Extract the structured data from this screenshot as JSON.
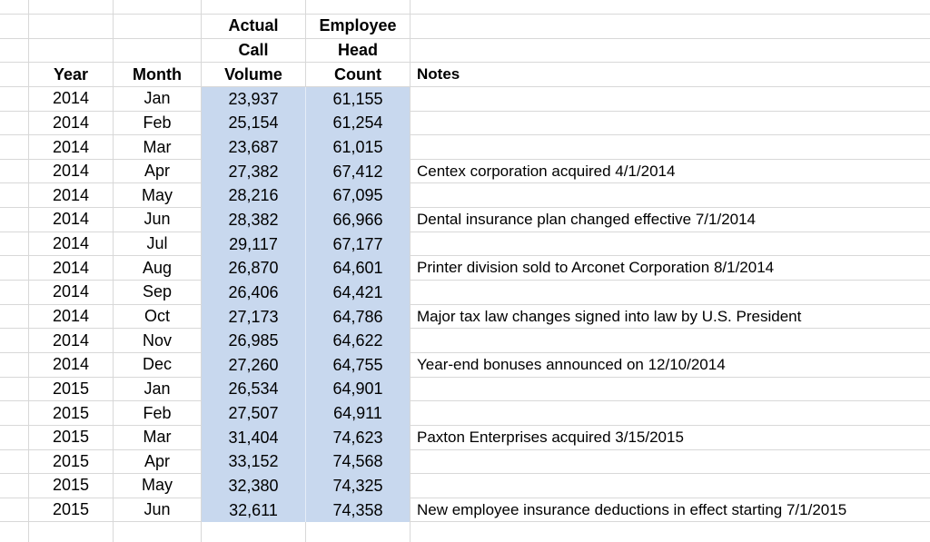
{
  "sheet": {
    "colors": {
      "highlight": "#c8d8ee",
      "gridline": "#d8d8d8"
    },
    "headers": {
      "year": "Year",
      "month": "Month",
      "volume_line1": "Actual",
      "volume_line2": "Call",
      "volume_line3": "Volume",
      "headcount_line1": "Employee",
      "headcount_line2": "Head",
      "headcount_line3": "Count",
      "notes": "Notes"
    },
    "rows": [
      {
        "year": "2014",
        "month": "Jan",
        "volume": "23,937",
        "headcount": "61,155",
        "note": ""
      },
      {
        "year": "2014",
        "month": "Feb",
        "volume": "25,154",
        "headcount": "61,254",
        "note": ""
      },
      {
        "year": "2014",
        "month": "Mar",
        "volume": "23,687",
        "headcount": "61,015",
        "note": ""
      },
      {
        "year": "2014",
        "month": "Apr",
        "volume": "27,382",
        "headcount": "67,412",
        "note": "Centex corporation acquired 4/1/2014"
      },
      {
        "year": "2014",
        "month": "May",
        "volume": "28,216",
        "headcount": "67,095",
        "note": ""
      },
      {
        "year": "2014",
        "month": "Jun",
        "volume": "28,382",
        "headcount": "66,966",
        "note": "Dental insurance plan changed effective 7/1/2014"
      },
      {
        "year": "2014",
        "month": "Jul",
        "volume": "29,117",
        "headcount": "67,177",
        "note": ""
      },
      {
        "year": "2014",
        "month": "Aug",
        "volume": "26,870",
        "headcount": "64,601",
        "note": "Printer division sold to Arconet Corporation 8/1/2014"
      },
      {
        "year": "2014",
        "month": "Sep",
        "volume": "26,406",
        "headcount": "64,421",
        "note": ""
      },
      {
        "year": "2014",
        "month": "Oct",
        "volume": "27,173",
        "headcount": "64,786",
        "note": "Major tax law changes signed into law by U.S. President"
      },
      {
        "year": "2014",
        "month": "Nov",
        "volume": "26,985",
        "headcount": "64,622",
        "note": ""
      },
      {
        "year": "2014",
        "month": "Dec",
        "volume": "27,260",
        "headcount": "64,755",
        "note": "Year-end bonuses announced on 12/10/2014"
      },
      {
        "year": "2015",
        "month": "Jan",
        "volume": "26,534",
        "headcount": "64,901",
        "note": ""
      },
      {
        "year": "2015",
        "month": "Feb",
        "volume": "27,507",
        "headcount": "64,911",
        "note": ""
      },
      {
        "year": "2015",
        "month": "Mar",
        "volume": "31,404",
        "headcount": "74,623",
        "note": "Paxton Enterprises acquired 3/15/2015"
      },
      {
        "year": "2015",
        "month": "Apr",
        "volume": "33,152",
        "headcount": "74,568",
        "note": ""
      },
      {
        "year": "2015",
        "month": "May",
        "volume": "32,380",
        "headcount": "74,325",
        "note": ""
      },
      {
        "year": "2015",
        "month": "Jun",
        "volume": "32,611",
        "headcount": "74,358",
        "note": "New employee insurance deductions in effect starting 7/1/2015"
      }
    ]
  }
}
